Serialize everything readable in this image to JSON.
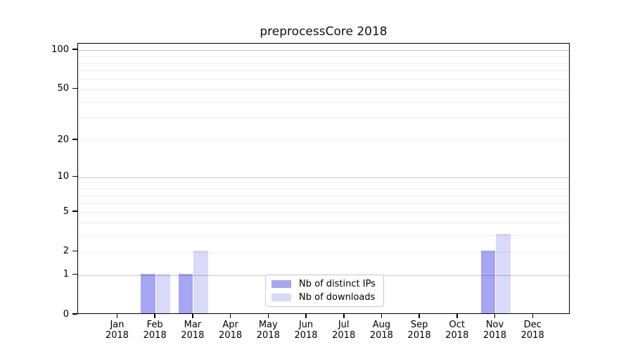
{
  "window": {
    "title": "preprocessCore 2018"
  },
  "chart_data": {
    "type": "bar",
    "title": "preprocessCore 2018",
    "xlabel": "",
    "ylabel": "",
    "categories": [
      "Jan",
      "Feb",
      "Mar",
      "Apr",
      "May",
      "Jun",
      "Jul",
      "Aug",
      "Sep",
      "Oct",
      "Nov",
      "Dec"
    ],
    "year_label": "2018",
    "series": [
      {
        "name": "Nb of distinct IPs",
        "color": "#a6a6f2",
        "values": [
          0,
          1,
          1,
          0,
          0,
          0,
          0,
          0,
          0,
          0,
          2,
          0
        ]
      },
      {
        "name": "Nb of downloads",
        "color": "#d9d9f8",
        "values": [
          0,
          1,
          2,
          0,
          0,
          0,
          0,
          0,
          0,
          0,
          3,
          0
        ]
      }
    ],
    "y_axis": {
      "scale": "log1p",
      "ticks": [
        0,
        1,
        2,
        5,
        10,
        20,
        50,
        100
      ],
      "major_gridlines": [
        1,
        10,
        100
      ],
      "minor_gridlines": [
        2,
        3,
        4,
        5,
        6,
        7,
        8,
        9,
        20,
        30,
        40,
        50,
        60,
        70,
        80,
        90
      ],
      "ylim": [
        0,
        112
      ]
    },
    "legend": {
      "position": "inside-bottom-center",
      "border_color": "#c9c9c9"
    },
    "grid": true,
    "colors": {
      "axis": "#000000",
      "major_grid": "#c6c6c6",
      "minor_grid": "#ededed",
      "background": "#ffffff"
    }
  }
}
